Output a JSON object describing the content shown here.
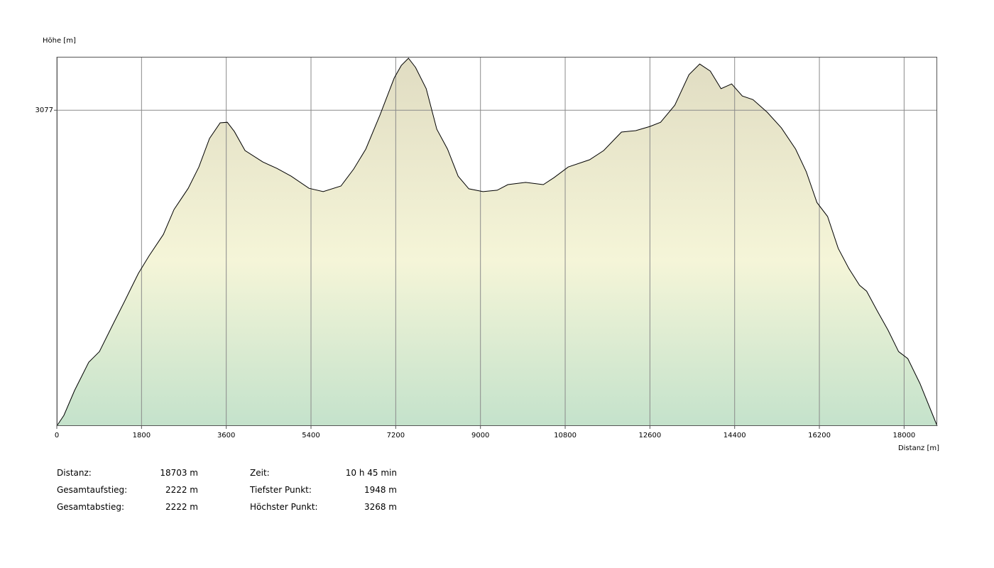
{
  "chart_data": {
    "type": "area",
    "y_label": "Höhe [m]",
    "x_label": "Distanz [m]",
    "x": [
      0,
      151,
      377,
      679,
      905,
      1207,
      1434,
      1584,
      1735,
      1962,
      2264,
      2490,
      2792,
      3018,
      3245,
      3471,
      3622,
      3773,
      3999,
      4376,
      4678,
      4980,
      5357,
      5659,
      6036,
      6308,
      6564,
      6866,
      7168,
      7319,
      7470,
      7621,
      7847,
      8073,
      8300,
      8526,
      8752,
      9054,
      9356,
      9582,
      9959,
      10336,
      10563,
      10865,
      11318,
      11619,
      11996,
      12298,
      12600,
      12827,
      13128,
      13430,
      13657,
      13883,
      14110,
      14336,
      14563,
      14789,
      15091,
      15393,
      15695,
      15921,
      16148,
      16374,
      16600,
      16827,
      17053,
      17204,
      17431,
      17657,
      17883,
      18079,
      18336,
      18703
    ],
    "values": [
      1948,
      1986,
      2075,
      2176,
      2214,
      2316,
      2392,
      2443,
      2494,
      2557,
      2633,
      2722,
      2798,
      2874,
      2976,
      3032,
      3034,
      3001,
      2933,
      2892,
      2869,
      2841,
      2798,
      2786,
      2806,
      2867,
      2938,
      3060,
      3192,
      3237,
      3263,
      3230,
      3154,
      3009,
      2938,
      2841,
      2796,
      2786,
      2791,
      2811,
      2819,
      2811,
      2836,
      2874,
      2900,
      2933,
      2999,
      3004,
      3019,
      3034,
      3095,
      3204,
      3242,
      3217,
      3154,
      3171,
      3128,
      3115,
      3070,
      3014,
      2938,
      2857,
      2747,
      2697,
      2583,
      2511,
      2451,
      2430,
      2359,
      2291,
      2214,
      2189,
      2100,
      1948
    ],
    "color": "#000000",
    "xlim": [
      0,
      18703
    ],
    "ylim": [
      1948,
      3268
    ],
    "xticks": [
      0,
      1800,
      3600,
      5400,
      7200,
      9000,
      10800,
      12600,
      14400,
      16200,
      18000
    ],
    "yticks": [
      3077
    ],
    "grid": true
  },
  "summary": [
    [
      {
        "label": "Distanz:",
        "value": "18703 m"
      },
      {
        "label": "Zeit:",
        "value": "10 h 45 min"
      }
    ],
    [
      {
        "label": "Gesamtaufstieg:",
        "value": "2222 m"
      },
      {
        "label": "Tiefster Punkt:",
        "value": "1948 m"
      }
    ],
    [
      {
        "label": "Gesamtabstieg:",
        "value": "2222 m"
      },
      {
        "label": "Höchster Punkt:",
        "value": "3268 m"
      }
    ]
  ]
}
